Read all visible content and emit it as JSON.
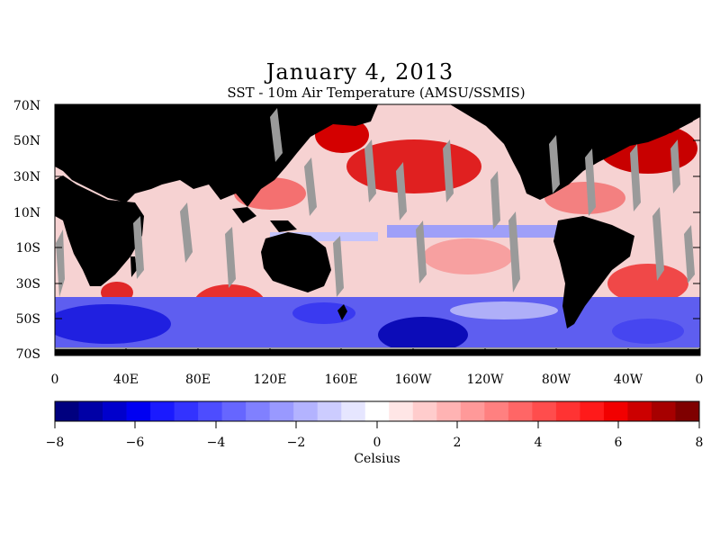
{
  "title": "January 4, 2013",
  "subtitle": "SST - 10m Air Temperature (AMSU/SSMIS)",
  "map": {
    "lat_labels": [
      "70N",
      "50N",
      "30N",
      "10N",
      "10S",
      "30S",
      "50S",
      "70S"
    ],
    "lon_labels": [
      "0",
      "40E",
      "80E",
      "120E",
      "160E",
      "160W",
      "120W",
      "80W",
      "40W",
      "0"
    ],
    "land_color": "#000000",
    "missing_color": "#9a9a9a"
  },
  "colorbar": {
    "tick_labels": [
      "−8",
      "−6",
      "−4",
      "−2",
      "0",
      "2",
      "4",
      "6",
      "8"
    ],
    "units_label": "Celsius",
    "range": [
      -8,
      8
    ],
    "colors": [
      "#00007f",
      "#0000a6",
      "#0000cc",
      "#0000f2",
      "#1a1aff",
      "#3333ff",
      "#4d4dff",
      "#6666ff",
      "#8080ff",
      "#9999ff",
      "#b3b3ff",
      "#ccccff",
      "#e6e6ff",
      "#ffffff",
      "#ffe6e6",
      "#ffcccc",
      "#ffb3b3",
      "#ff9999",
      "#ff8080",
      "#ff6666",
      "#ff4d4d",
      "#ff3333",
      "#ff1a1a",
      "#f20000",
      "#cc0000",
      "#a60000",
      "#7f0000"
    ]
  }
}
